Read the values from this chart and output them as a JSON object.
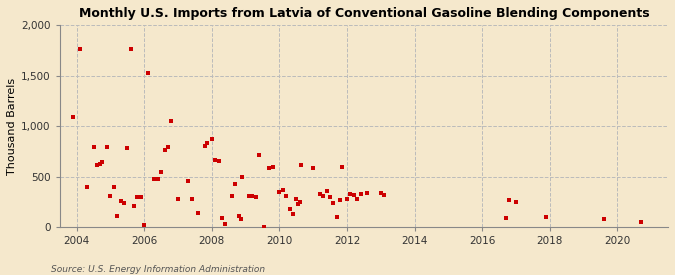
{
  "title": "Monthly U.S. Imports from Latvia of Conventional Gasoline Blending Components",
  "ylabel": "Thousand Barrels",
  "source": "Source: U.S. Energy Information Administration",
  "background_color": "#f5e8cc",
  "marker_color": "#cc0000",
  "ylim": [
    0,
    2000
  ],
  "yticks": [
    0,
    500,
    1000,
    1500,
    2000
  ],
  "xlim": [
    2003.5,
    2021.5
  ],
  "xticks": [
    2004,
    2006,
    2008,
    2010,
    2012,
    2014,
    2016,
    2018,
    2020
  ],
  "data_points": [
    [
      2003.9,
      1090
    ],
    [
      2004.1,
      1760
    ],
    [
      2004.3,
      400
    ],
    [
      2004.5,
      790
    ],
    [
      2004.6,
      610
    ],
    [
      2004.7,
      620
    ],
    [
      2004.75,
      640
    ],
    [
      2004.9,
      790
    ],
    [
      2005.0,
      310
    ],
    [
      2005.1,
      400
    ],
    [
      2005.2,
      110
    ],
    [
      2005.3,
      260
    ],
    [
      2005.4,
      240
    ],
    [
      2005.5,
      780
    ],
    [
      2005.6,
      1760
    ],
    [
      2005.7,
      210
    ],
    [
      2005.8,
      300
    ],
    [
      2005.9,
      300
    ],
    [
      2006.0,
      20
    ],
    [
      2006.1,
      1530
    ],
    [
      2006.3,
      480
    ],
    [
      2006.4,
      480
    ],
    [
      2006.5,
      550
    ],
    [
      2006.6,
      760
    ],
    [
      2006.7,
      790
    ],
    [
      2006.8,
      1055
    ],
    [
      2007.0,
      280
    ],
    [
      2007.3,
      460
    ],
    [
      2007.4,
      280
    ],
    [
      2007.6,
      140
    ],
    [
      2007.8,
      800
    ],
    [
      2007.85,
      830
    ],
    [
      2008.0,
      870
    ],
    [
      2008.1,
      660
    ],
    [
      2008.2,
      650
    ],
    [
      2008.3,
      90
    ],
    [
      2008.4,
      30
    ],
    [
      2008.6,
      310
    ],
    [
      2008.7,
      430
    ],
    [
      2008.8,
      110
    ],
    [
      2008.85,
      80
    ],
    [
      2008.9,
      500
    ],
    [
      2009.1,
      310
    ],
    [
      2009.2,
      310
    ],
    [
      2009.3,
      300
    ],
    [
      2009.4,
      710
    ],
    [
      2009.55,
      0
    ],
    [
      2009.7,
      590
    ],
    [
      2009.8,
      600
    ],
    [
      2010.0,
      350
    ],
    [
      2010.1,
      370
    ],
    [
      2010.2,
      310
    ],
    [
      2010.3,
      175
    ],
    [
      2010.4,
      125
    ],
    [
      2010.5,
      280
    ],
    [
      2010.55,
      230
    ],
    [
      2010.6,
      250
    ],
    [
      2010.65,
      615
    ],
    [
      2011.0,
      590
    ],
    [
      2011.2,
      325
    ],
    [
      2011.3,
      310
    ],
    [
      2011.4,
      355
    ],
    [
      2011.5,
      300
    ],
    [
      2011.6,
      235
    ],
    [
      2011.7,
      100
    ],
    [
      2011.8,
      270
    ],
    [
      2011.85,
      600
    ],
    [
      2012.0,
      280
    ],
    [
      2012.1,
      330
    ],
    [
      2012.2,
      320
    ],
    [
      2012.3,
      280
    ],
    [
      2012.4,
      330
    ],
    [
      2012.6,
      340
    ],
    [
      2013.0,
      340
    ],
    [
      2013.1,
      320
    ],
    [
      2016.7,
      90
    ],
    [
      2016.8,
      270
    ],
    [
      2017.0,
      250
    ],
    [
      2017.9,
      100
    ],
    [
      2019.6,
      80
    ],
    [
      2020.7,
      50
    ]
  ]
}
